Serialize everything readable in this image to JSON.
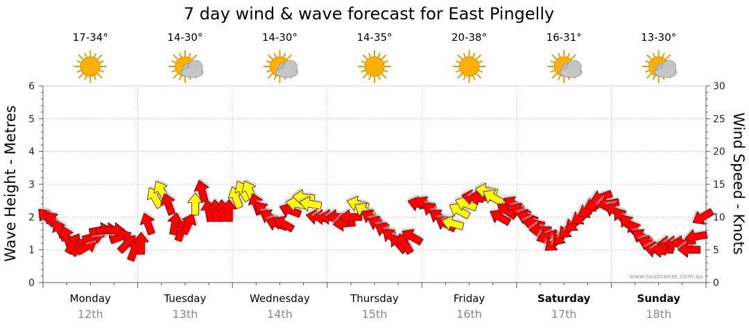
{
  "page": {
    "title": "7 day wind & wave forecast for East Pingelly"
  },
  "credit": "www.seabreeze.com.au",
  "colors": {
    "strong_wind": "#ff0000",
    "moderate_wind": "#ffff00",
    "sun": "#ffb000",
    "cloud": "#b8b8b8",
    "grid": "#bbbbbb"
  },
  "days": [
    {
      "name": "Monday",
      "date": "12th",
      "temp": "17-34°",
      "icon": "sunny-icon",
      "bold": false
    },
    {
      "name": "Tuesday",
      "date": "13th",
      "temp": "14-30°",
      "icon": "partly-cloudy-icon",
      "bold": false
    },
    {
      "name": "Wednesday",
      "date": "14th",
      "temp": "14-30°",
      "icon": "partly-cloudy-icon",
      "bold": false
    },
    {
      "name": "Thursday",
      "date": "15th",
      "temp": "14-35°",
      "icon": "sunny-icon",
      "bold": false
    },
    {
      "name": "Friday",
      "date": "16th",
      "temp": "20-38°",
      "icon": "sunny-icon",
      "bold": false
    },
    {
      "name": "Saturday",
      "date": "17th",
      "temp": "16-31°",
      "icon": "partly-cloudy-icon",
      "bold": true
    },
    {
      "name": "Sunday",
      "date": "18th",
      "temp": "13-30°",
      "icon": "partly-cloudy-icon",
      "bold": true
    }
  ],
  "chart_data": {
    "type": "line",
    "title": "7 day wind & wave forecast for East Pingelly",
    "left_axis": {
      "label": "Wave Height - Metres",
      "ylim": [
        0,
        6
      ],
      "ticks": [
        0,
        1,
        2,
        3,
        4,
        5,
        6
      ]
    },
    "right_axis": {
      "label": "Wind Speed - Knots",
      "ylim": [
        0,
        30
      ],
      "ticks": [
        0,
        5,
        10,
        15,
        20,
        25,
        30
      ]
    },
    "grid": true,
    "series": [
      {
        "values": [
          10,
          9.5,
          8,
          7,
          6,
          5.5,
          5.5,
          7,
          8,
          8,
          8,
          7,
          6,
          5,
          6,
          9,
          13,
          14,
          12,
          9,
          8,
          9,
          12,
          14,
          11,
          11,
          11,
          11,
          13,
          14,
          14,
          12,
          11,
          10,
          9,
          9,
          11,
          12,
          13,
          12,
          10,
          10,
          10,
          10,
          9,
          10,
          12,
          11,
          10,
          9,
          8,
          7,
          6,
          6,
          7,
          12,
          12,
          11,
          10,
          9,
          9,
          11,
          12,
          13,
          13,
          14,
          13,
          10,
          11,
          12,
          11,
          10,
          9,
          8,
          7,
          6,
          7,
          8,
          9,
          10,
          11,
          12,
          13,
          12,
          11,
          10,
          9,
          8,
          7,
          6,
          5,
          5,
          6,
          6,
          6,
          5,
          7,
          10
        ],
        "directions": [
          315,
          320,
          330,
          340,
          30,
          45,
          60,
          75,
          80,
          85,
          90,
          70,
          45,
          20,
          0,
          340,
          330,
          330,
          340,
          10,
          20,
          25,
          0,
          345,
          350,
          355,
          355,
          0,
          340,
          330,
          335,
          340,
          320,
          300,
          290,
          300,
          290,
          280,
          275,
          280,
          280,
          270,
          275,
          270,
          265,
          270,
          285,
          300,
          300,
          295,
          300,
          310,
          320,
          330,
          300,
          285,
          300,
          310,
          305,
          300,
          285,
          300,
          290,
          280,
          270,
          280,
          300,
          300,
          305,
          300,
          295,
          290,
          280,
          270,
          250,
          230,
          220,
          225,
          230,
          235,
          240,
          245,
          250,
          260,
          300,
          320,
          320,
          330,
          300,
          290,
          280,
          270,
          270,
          270,
          275,
          270,
          260,
          240
        ],
        "gusty": [
          false,
          false,
          false,
          false,
          false,
          false,
          false,
          false,
          false,
          false,
          false,
          false,
          false,
          false,
          false,
          false,
          true,
          true,
          false,
          false,
          false,
          false,
          true,
          false,
          false,
          false,
          false,
          false,
          true,
          true,
          true,
          false,
          false,
          false,
          false,
          false,
          false,
          true,
          true,
          true,
          false,
          false,
          false,
          false,
          false,
          false,
          true,
          true,
          false,
          false,
          false,
          false,
          false,
          false,
          false,
          false,
          false,
          false,
          false,
          false,
          true,
          true,
          true,
          false,
          false,
          true,
          true,
          false,
          false,
          false,
          false,
          false,
          false,
          false,
          false,
          false,
          false,
          false,
          false,
          false,
          false,
          false,
          false,
          false,
          false,
          false,
          false,
          false,
          false,
          false,
          false,
          false,
          false,
          false,
          false,
          false,
          false,
          false
        ]
      }
    ]
  }
}
